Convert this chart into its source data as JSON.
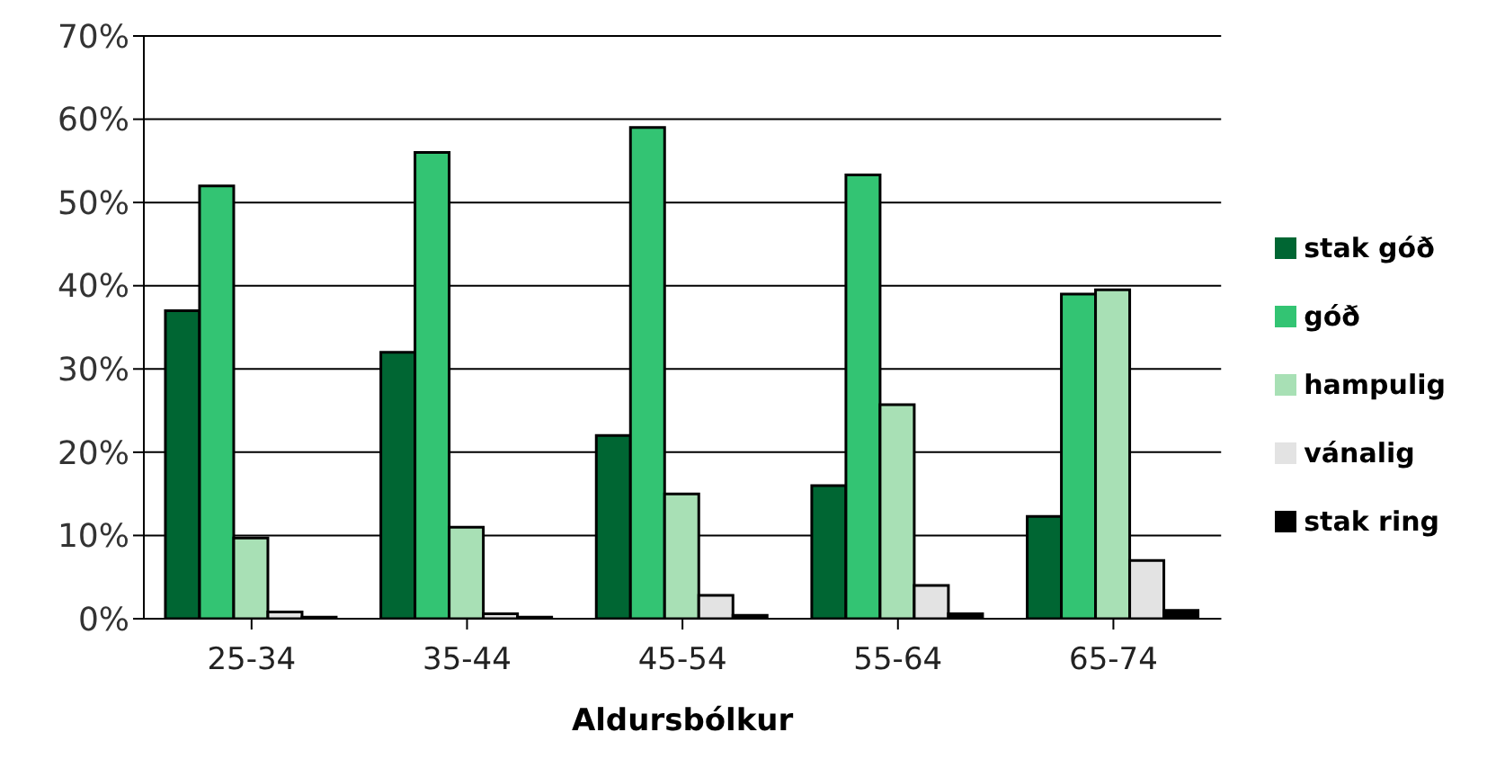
{
  "chart_data": {
    "type": "bar",
    "xlabel": "Aldursbólkur",
    "categories": [
      "25-34",
      "35-44",
      "45-54",
      "55-64",
      "65-74"
    ],
    "series": [
      {
        "name": "stak góð",
        "color": "#006633",
        "values": [
          37,
          32,
          22,
          16,
          12.3
        ]
      },
      {
        "name": "góð",
        "color": "#33c473",
        "values": [
          52,
          56,
          59,
          53.3,
          39
        ]
      },
      {
        "name": "hampulig",
        "color": "#a8e0b5",
        "values": [
          9.7,
          11,
          15,
          25.7,
          39.5
        ]
      },
      {
        "name": "vánalig",
        "color": "#e3e3e3",
        "values": [
          0.8,
          0.6,
          2.8,
          4,
          7
        ]
      },
      {
        "name": "stak ring",
        "color": "#000000",
        "values": [
          0.2,
          0.2,
          0.4,
          0.6,
          1
        ]
      }
    ],
    "ylim": [
      0,
      70
    ],
    "yticks": [
      {
        "value": 0,
        "label": "0%"
      },
      {
        "value": 10,
        "label": "10%"
      },
      {
        "value": 20,
        "label": "20%"
      },
      {
        "value": 30,
        "label": "30%"
      },
      {
        "value": 40,
        "label": "40%"
      },
      {
        "value": 50,
        "label": "50%"
      },
      {
        "value": 60,
        "label": "60%"
      },
      {
        "value": 70,
        "label": "70%"
      }
    ],
    "grid": "y",
    "legend": "right"
  }
}
